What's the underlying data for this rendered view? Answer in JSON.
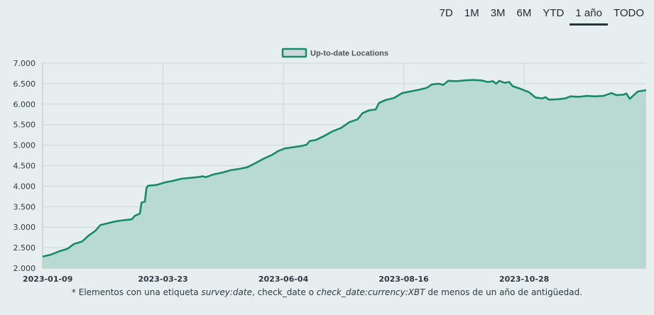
{
  "range_buttons": [
    {
      "label": "7D",
      "active": false
    },
    {
      "label": "1M",
      "active": false
    },
    {
      "label": "3M",
      "active": false
    },
    {
      "label": "6M",
      "active": false
    },
    {
      "label": "YTD",
      "active": false
    },
    {
      "label": "1 año",
      "active": true
    },
    {
      "label": "TODO",
      "active": false
    }
  ],
  "footnote": {
    "prefix": "* Elementos con una etiqueta ",
    "tag1": "survey:date",
    "mid1": ", check_date o ",
    "tag2": "check_date:currency:XBT",
    "suffix": " de menos de un año de antigüedad."
  },
  "colors": {
    "line": "#178a68",
    "fill": "#b6d8cf",
    "grid": "#cfd6d8"
  },
  "chart_data": {
    "type": "area",
    "title": "",
    "xlabel": "",
    "ylabel": "",
    "legend": {
      "label": "Up-to-date Locations",
      "placement": "top-center"
    },
    "x_range": [
      "2023-01-09",
      "2024-01-10"
    ],
    "ylim": [
      2000,
      7000
    ],
    "yticks": [
      2000,
      2500,
      3000,
      3500,
      4000,
      4500,
      5000,
      5500,
      6000,
      6500,
      7000
    ],
    "ytick_labels": [
      "2.000",
      "2.500",
      "3.000",
      "3.500",
      "4.000",
      "4.500",
      "5.000",
      "5.500",
      "6.000",
      "6.500",
      "7.000"
    ],
    "xticks": [
      "2023-01-09",
      "2023-03-23",
      "2023-06-04",
      "2023-08-16",
      "2023-10-28"
    ],
    "grid": true,
    "series": [
      {
        "name": "Up-to-date Locations",
        "points": [
          [
            "2023-01-09",
            2280
          ],
          [
            "2023-01-14",
            2330
          ],
          [
            "2023-01-19",
            2410
          ],
          [
            "2023-01-24",
            2470
          ],
          [
            "2023-01-28",
            2590
          ],
          [
            "2023-02-02",
            2650
          ],
          [
            "2023-02-06",
            2800
          ],
          [
            "2023-02-10",
            2910
          ],
          [
            "2023-02-13",
            3050
          ],
          [
            "2023-02-18",
            3100
          ],
          [
            "2023-02-22",
            3140
          ],
          [
            "2023-02-27",
            3170
          ],
          [
            "2023-03-04",
            3190
          ],
          [
            "2023-03-06",
            3280
          ],
          [
            "2023-03-09",
            3330
          ],
          [
            "2023-03-10",
            3600
          ],
          [
            "2023-03-12",
            3620
          ],
          [
            "2023-03-13",
            3960
          ],
          [
            "2023-03-14",
            4010
          ],
          [
            "2023-03-19",
            4030
          ],
          [
            "2023-03-24",
            4090
          ],
          [
            "2023-03-29",
            4130
          ],
          [
            "2023-04-03",
            4180
          ],
          [
            "2023-04-08",
            4200
          ],
          [
            "2023-04-13",
            4220
          ],
          [
            "2023-04-16",
            4240
          ],
          [
            "2023-04-18",
            4220
          ],
          [
            "2023-04-23",
            4290
          ],
          [
            "2023-04-28",
            4330
          ],
          [
            "2023-05-03",
            4390
          ],
          [
            "2023-05-08",
            4420
          ],
          [
            "2023-05-13",
            4460
          ],
          [
            "2023-05-18",
            4560
          ],
          [
            "2023-05-23",
            4670
          ],
          [
            "2023-05-28",
            4760
          ],
          [
            "2023-06-01",
            4860
          ],
          [
            "2023-06-05",
            4920
          ],
          [
            "2023-06-10",
            4950
          ],
          [
            "2023-06-15",
            4980
          ],
          [
            "2023-06-18",
            5010
          ],
          [
            "2023-06-20",
            5100
          ],
          [
            "2023-06-24",
            5130
          ],
          [
            "2023-06-29",
            5230
          ],
          [
            "2023-07-04",
            5340
          ],
          [
            "2023-07-09",
            5420
          ],
          [
            "2023-07-14",
            5560
          ],
          [
            "2023-07-19",
            5630
          ],
          [
            "2023-07-22",
            5780
          ],
          [
            "2023-07-26",
            5850
          ],
          [
            "2023-07-30",
            5870
          ],
          [
            "2023-08-01",
            6030
          ],
          [
            "2023-08-05",
            6100
          ],
          [
            "2023-08-10",
            6150
          ],
          [
            "2023-08-15",
            6270
          ],
          [
            "2023-08-20",
            6310
          ],
          [
            "2023-08-25",
            6350
          ],
          [
            "2023-08-30",
            6400
          ],
          [
            "2023-09-02",
            6480
          ],
          [
            "2023-09-06",
            6500
          ],
          [
            "2023-09-09",
            6470
          ],
          [
            "2023-09-12",
            6570
          ],
          [
            "2023-09-17",
            6560
          ],
          [
            "2023-09-22",
            6580
          ],
          [
            "2023-09-27",
            6590
          ],
          [
            "2023-10-02",
            6580
          ],
          [
            "2023-10-06",
            6540
          ],
          [
            "2023-10-09",
            6560
          ],
          [
            "2023-10-11",
            6500
          ],
          [
            "2023-10-13",
            6570
          ],
          [
            "2023-10-16",
            6520
          ],
          [
            "2023-10-19",
            6540
          ],
          [
            "2023-10-21",
            6440
          ],
          [
            "2023-10-26",
            6370
          ],
          [
            "2023-10-31",
            6290
          ],
          [
            "2023-11-04",
            6160
          ],
          [
            "2023-11-08",
            6140
          ],
          [
            "2023-11-10",
            6170
          ],
          [
            "2023-11-12",
            6110
          ],
          [
            "2023-11-17",
            6120
          ],
          [
            "2023-11-22",
            6140
          ],
          [
            "2023-11-25",
            6190
          ],
          [
            "2023-11-30",
            6180
          ],
          [
            "2023-12-05",
            6200
          ],
          [
            "2023-12-10",
            6190
          ],
          [
            "2023-12-15",
            6200
          ],
          [
            "2023-12-20",
            6270
          ],
          [
            "2023-12-23",
            6220
          ],
          [
            "2023-12-27",
            6230
          ],
          [
            "2023-12-29",
            6260
          ],
          [
            "2023-12-31",
            6130
          ],
          [
            "2024-01-02",
            6200
          ],
          [
            "2024-01-05",
            6310
          ],
          [
            "2024-01-10",
            6340
          ]
        ]
      }
    ]
  }
}
